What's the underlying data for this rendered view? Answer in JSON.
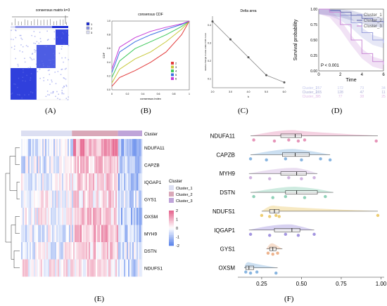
{
  "labels": {
    "A": "(A)",
    "B": "(B)",
    "C": "(C)",
    "D": "(D)",
    "E": "(E)",
    "F": "(F)"
  },
  "panel_a": {
    "title": "consensus matrix k=3",
    "legend": [
      "1",
      "2",
      "3"
    ],
    "colors": [
      "#1a2bd8",
      "#8c93e8",
      "#dfe2f7"
    ]
  },
  "chart_data": [
    {
      "id": "B",
      "type": "line",
      "title": "consensus CDF",
      "xlabel": "consensus index",
      "ylabel": "CDF",
      "xlim": [
        0,
        1
      ],
      "ylim": [
        0,
        1
      ],
      "x_ticks": [
        "0",
        "0.2",
        "0.4",
        "0.6",
        "0.8",
        "1"
      ],
      "y_ticks": [
        "0.0",
        "0.2",
        "0.4",
        "0.6",
        "0.8",
        "1.0"
      ],
      "legend": [
        "2",
        "3",
        "4",
        "5",
        "6"
      ],
      "series": [
        {
          "name": "2",
          "color": "#e23b3b",
          "x": [
            0,
            0.1,
            0.3,
            0.5,
            0.7,
            0.9,
            1
          ],
          "y": [
            0.05,
            0.18,
            0.28,
            0.4,
            0.55,
            0.8,
            1
          ]
        },
        {
          "name": "3",
          "color": "#c7c83a",
          "x": [
            0,
            0.1,
            0.3,
            0.5,
            0.7,
            0.9,
            1
          ],
          "y": [
            0.1,
            0.3,
            0.45,
            0.55,
            0.7,
            0.88,
            1
          ]
        },
        {
          "name": "4",
          "color": "#3ec85c",
          "x": [
            0,
            0.1,
            0.3,
            0.5,
            0.7,
            0.9,
            1
          ],
          "y": [
            0.18,
            0.42,
            0.6,
            0.7,
            0.8,
            0.92,
            1
          ]
        },
        {
          "name": "5",
          "color": "#3b70e2",
          "x": [
            0,
            0.1,
            0.3,
            0.5,
            0.7,
            0.9,
            1
          ],
          "y": [
            0.25,
            0.55,
            0.7,
            0.8,
            0.88,
            0.95,
            1
          ]
        },
        {
          "name": "6",
          "color": "#c53ad8",
          "x": [
            0,
            0.1,
            0.3,
            0.5,
            0.7,
            0.9,
            1
          ],
          "y": [
            0.3,
            0.62,
            0.76,
            0.85,
            0.91,
            0.96,
            1
          ]
        }
      ]
    },
    {
      "id": "C",
      "type": "line",
      "title": "Delta area",
      "xlabel": "k",
      "ylabel": "relative change in area under CDF curve",
      "x": [
        2,
        3,
        4,
        5,
        6
      ],
      "y": [
        0.42,
        0.32,
        0.22,
        0.12,
        0.08
      ],
      "xlim": [
        2,
        6
      ],
      "ylim": [
        0.05,
        0.45
      ],
      "x_ticks": [
        "2.0",
        "3.0",
        "4.0",
        "5.0",
        "6.0"
      ],
      "y_ticks": [
        "0.1",
        "0.2",
        "0.3",
        "0.4"
      ]
    },
    {
      "id": "D",
      "type": "line",
      "xlabel": "Time",
      "ylabel": "Survival probability",
      "xlim": [
        0,
        6
      ],
      "ylim": [
        0,
        1
      ],
      "x_ticks": [
        "0",
        "2",
        "4",
        "6"
      ],
      "y_ticks": [
        "0.00",
        "0.25",
        "0.50",
        "0.75",
        "1.00"
      ],
      "pvalue": "P < 0.001",
      "legend": [
        "Cluster_1",
        "Cluster_2",
        "Cluster_3"
      ],
      "series": [
        {
          "name": "Cluster_1",
          "color": "#9aa0dc",
          "x": [
            0,
            1,
            2,
            3,
            4,
            5,
            6
          ],
          "y": [
            1,
            0.97,
            0.9,
            0.78,
            0.62,
            0.5,
            0.45
          ]
        },
        {
          "name": "Cluster_2",
          "color": "#6d72b5",
          "x": [
            0,
            1,
            2,
            3,
            4,
            5,
            6
          ],
          "y": [
            1,
            0.98,
            0.95,
            0.9,
            0.85,
            0.8,
            0.78
          ]
        },
        {
          "name": "Cluster_3",
          "color": "#c98ad6",
          "x": [
            0,
            1,
            2,
            3,
            4,
            5,
            6
          ],
          "y": [
            1,
            0.95,
            0.75,
            0.5,
            0.28,
            0.15,
            0.1
          ]
        }
      ],
      "risk_table": [
        {
          "name": "Cluster_1",
          "values": [
            "257",
            "172",
            "73",
            "34"
          ]
        },
        {
          "name": "Cluster_2",
          "values": [
            "165",
            "128",
            "47",
            "11"
          ]
        },
        {
          "name": "Cluster_3",
          "values": [
            "95",
            "77",
            "38",
            "25"
          ]
        }
      ]
    },
    {
      "id": "E",
      "type": "heatmap",
      "annotation_title": "Cluster",
      "rows": [
        "NDUFA11",
        "CAPZB",
        "IQGAP1",
        "GYS1",
        "OXSM",
        "MYH9",
        "DSTN",
        "NDUFS1"
      ],
      "clusters": [
        "Cluster_1",
        "Cluster_2",
        "Cluster_3"
      ],
      "cluster_colors": [
        "#dcdff2",
        "#d9a8b8",
        "#bfa4d9"
      ],
      "cluster_fractions": [
        0.42,
        0.38,
        0.2
      ],
      "scale": [
        -2,
        2
      ],
      "scale_ticks": [
        "2",
        "1",
        "0",
        "-1",
        "-2"
      ],
      "row_bias": [
        [
          -0.4,
          1.2,
          -1.0
        ],
        [
          -0.3,
          0.7,
          -0.8
        ],
        [
          -0.1,
          0.5,
          -0.9
        ],
        [
          0.0,
          0.4,
          -0.6
        ],
        [
          0.1,
          0.6,
          -0.9
        ],
        [
          -0.2,
          0.9,
          -0.7
        ],
        [
          -0.1,
          0.6,
          -0.4
        ],
        [
          0.2,
          0.3,
          -0.5
        ]
      ]
    },
    {
      "id": "F",
      "type": "scatter",
      "categories": [
        "NDUFA11",
        "CAPZB",
        "MYH9",
        "DSTN",
        "NDUFS1",
        "IQGAP1",
        "GYS1",
        "OXSM"
      ],
      "colors": [
        "#e07aa8",
        "#6aa2d8",
        "#c4a0d8",
        "#74c6a6",
        "#e8c050",
        "#8c7ad8",
        "#e8a070",
        "#6aa2d8"
      ],
      "xlim": [
        0.1,
        1.02
      ],
      "x_ticks": [
        "0.25",
        "0.50",
        "0.75",
        "1.00"
      ],
      "x_tick_values": [
        0.25,
        0.5,
        0.75,
        1.0
      ],
      "boxes": [
        {
          "q1": 0.37,
          "median": 0.46,
          "q3": 0.5,
          "min": 0.18,
          "max": 0.98,
          "points": [
            0.2,
            0.33,
            0.42,
            0.48,
            0.52,
            0.97
          ]
        },
        {
          "q1": 0.38,
          "median": 0.46,
          "q3": 0.55,
          "min": 0.18,
          "max": 0.68,
          "points": [
            0.18,
            0.28,
            0.4,
            0.5,
            0.62,
            0.68
          ]
        },
        {
          "q1": 0.37,
          "median": 0.47,
          "q3": 0.53,
          "min": 0.17,
          "max": 0.6,
          "points": [
            0.18,
            0.3,
            0.42,
            0.5,
            0.58
          ]
        },
        {
          "q1": 0.4,
          "median": 0.47,
          "q3": 0.6,
          "min": 0.18,
          "max": 0.7,
          "points": [
            0.2,
            0.32,
            0.4,
            0.52,
            0.65
          ]
        },
        {
          "q1": 0.3,
          "median": 0.33,
          "q3": 0.36,
          "min": 0.25,
          "max": 0.98,
          "points": [
            0.25,
            0.3,
            0.34,
            0.36,
            0.98
          ]
        },
        {
          "q1": 0.33,
          "median": 0.44,
          "q3": 0.49,
          "min": 0.17,
          "max": 0.58,
          "points": [
            0.18,
            0.3,
            0.4,
            0.48,
            0.58
          ]
        },
        {
          "q1": 0.3,
          "median": 0.32,
          "q3": 0.34,
          "min": 0.28,
          "max": 0.38,
          "points": [
            0.29,
            0.32,
            0.35
          ]
        },
        {
          "q1": 0.15,
          "median": 0.17,
          "q3": 0.2,
          "min": 0.14,
          "max": 0.35,
          "points": [
            0.15,
            0.18,
            0.22,
            0.34
          ]
        }
      ]
    }
  ]
}
